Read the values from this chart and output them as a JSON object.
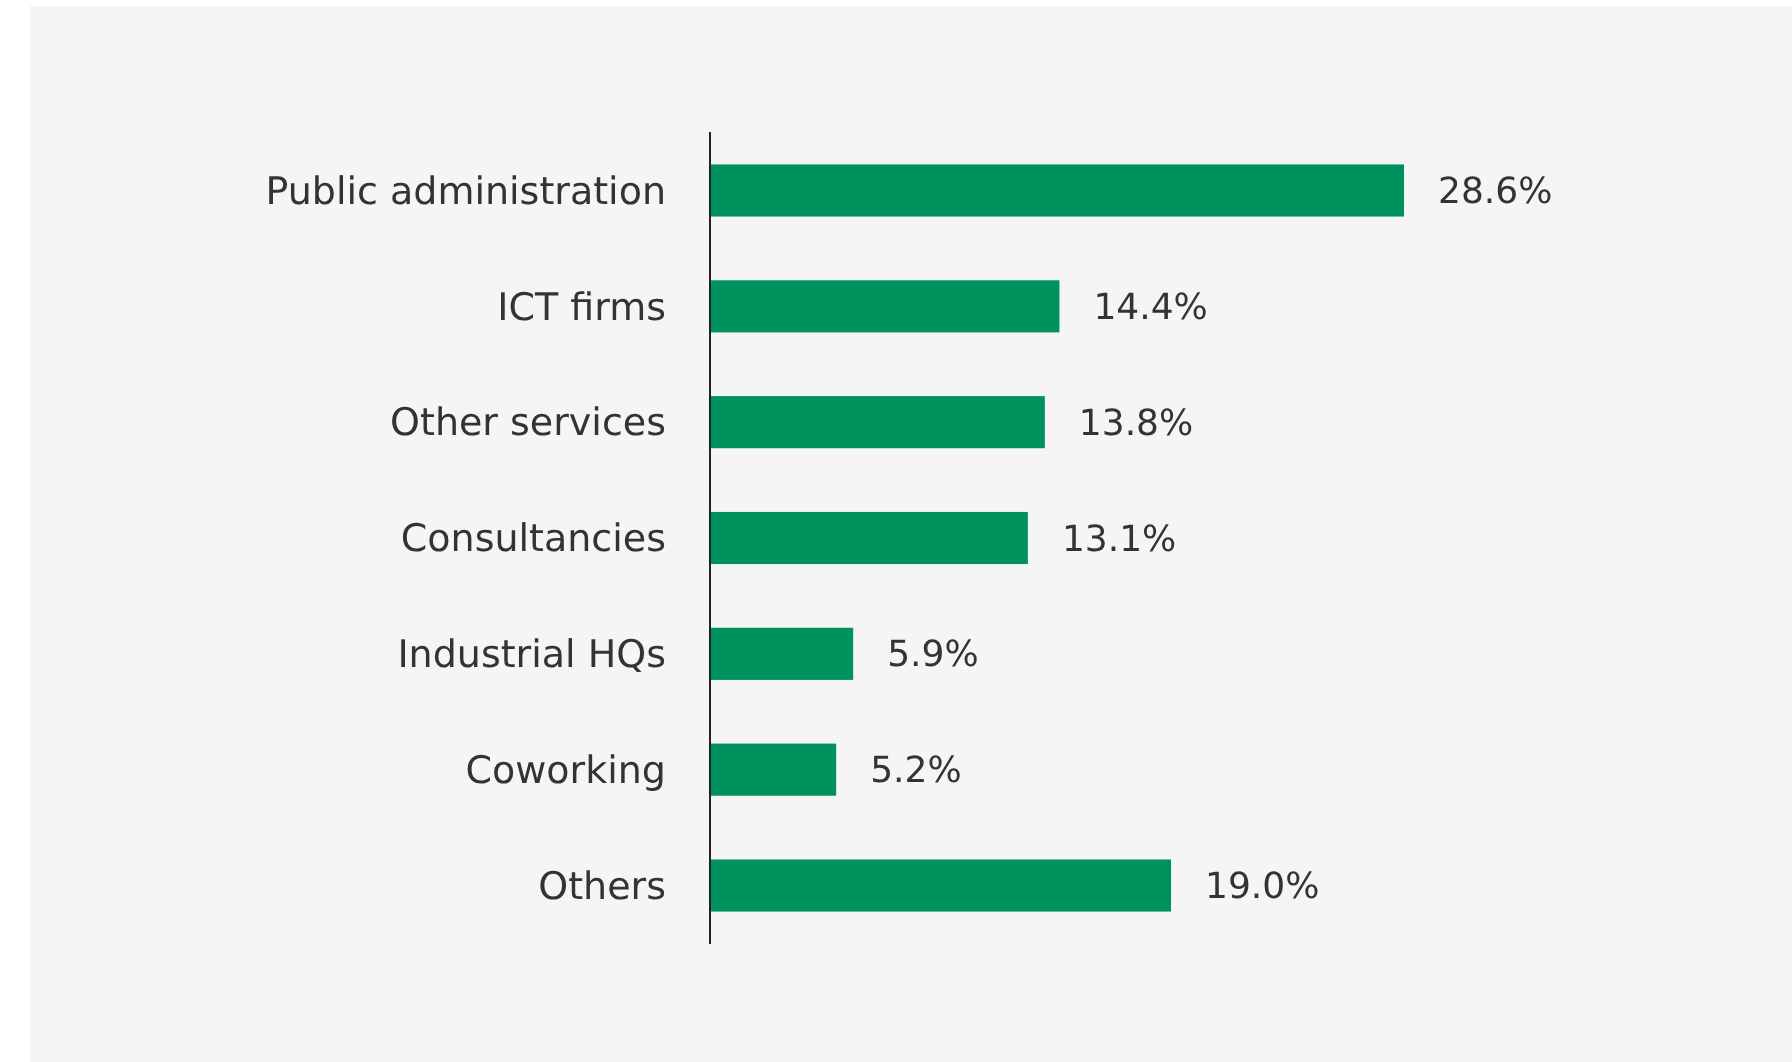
{
  "chart_data": {
    "type": "bar",
    "orientation": "horizontal",
    "categories": [
      "Public administration",
      "ICT firms",
      "Other services",
      "Consultancies",
      "Industrial HQs",
      "Coworking",
      "Others"
    ],
    "values": [
      28.6,
      14.4,
      13.8,
      13.1,
      5.9,
      5.2,
      19.0
    ],
    "value_labels": [
      "28.6%",
      "14.4%",
      "13.8%",
      "13.1%",
      "5.9%",
      "5.2%",
      "19.0%"
    ],
    "color": "#00925d"
  }
}
